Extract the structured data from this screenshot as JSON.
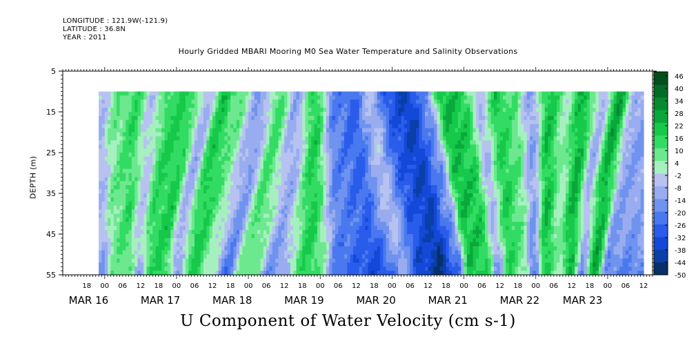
{
  "header": {
    "longitude": "LONGITUDE : 121.9W(-121.9)",
    "latitude": "LATITUDE : 36.8N",
    "year": "YEAR : 2011",
    "title": "Hourly Gridded MBARI Mooring M0 Sea Water Temperature and Salinity Observations"
  },
  "footer": {
    "variable_title": "U Component of Water Velocity (cm s-1)"
  },
  "chart_data": {
    "type": "heatmap",
    "title": "Hourly Gridded MBARI Mooring M0 Sea Water Temperature and Salinity Observations",
    "xlabel": "",
    "ylabel": "DEPTH (m)",
    "colorbar_label": "U Component of Water Velocity (cm s-1)",
    "x_axis": {
      "unit": "hours since 2011-03-16 00:00",
      "range_hours": [
        -14,
        183
      ],
      "data_range_hours": [
        -2,
        180
      ],
      "hour_tick_step": 6,
      "hour_ticks": [
        -6,
        0,
        6,
        12,
        18,
        24,
        30,
        36,
        42,
        48,
        54,
        60,
        66,
        72,
        78,
        84,
        90,
        96,
        102,
        108,
        114,
        120,
        126,
        132,
        138,
        144,
        150,
        156,
        162,
        168,
        174,
        180
      ],
      "hour_labels": [
        "18",
        "00",
        "06",
        "12",
        "18",
        "00",
        "06",
        "12",
        "18",
        "00",
        "06",
        "12",
        "18",
        "00",
        "06",
        "12",
        "18",
        "00",
        "06",
        "12",
        "18",
        "00",
        "06",
        "12",
        "18",
        "00",
        "06",
        "12",
        "18",
        "00",
        "06",
        "12"
      ],
      "date_labels": [
        {
          "text": "MAR 16",
          "hour": -12
        },
        {
          "text": "MAR 17",
          "hour": 12
        },
        {
          "text": "MAR 18",
          "hour": 36
        },
        {
          "text": "MAR 19",
          "hour": 60
        },
        {
          "text": "MAR 20",
          "hour": 84
        },
        {
          "text": "MAR 21",
          "hour": 108
        },
        {
          "text": "MAR 22",
          "hour": 132
        },
        {
          "text": "MAR 23",
          "hour": 153
        }
      ]
    },
    "y_axis": {
      "range": [
        5,
        55
      ],
      "inverted": true,
      "data_range": [
        10,
        55
      ],
      "ticks": [
        5,
        15,
        25,
        35,
        45,
        55
      ]
    },
    "colorbar": {
      "min": -50,
      "max": 48,
      "labels": [
        46,
        40,
        34,
        28,
        22,
        16,
        10,
        4,
        -2,
        -8,
        -14,
        -20,
        -26,
        -32,
        -38,
        -44,
        -50
      ],
      "colors": [
        "#08306b",
        "#0a3fa8",
        "#1448d8",
        "#2a5cec",
        "#4a78ee",
        "#6f93ef",
        "#98acef",
        "#b7c2f1",
        "#a6f0c0",
        "#6de88f",
        "#32dc62",
        "#16c94a",
        "#0aa83a",
        "#058a2f",
        "#036b26",
        "#024f1b"
      ]
    },
    "pattern": {
      "description_rows": "depth",
      "time_profile_hours": [
        -2,
        4,
        10,
        16,
        22,
        28,
        34,
        40,
        46,
        52,
        58,
        64,
        70,
        76,
        82,
        88,
        94,
        100,
        106,
        112,
        118,
        124,
        130,
        136,
        142,
        148,
        154,
        160,
        166,
        172,
        178
      ],
      "time_profile_values": [
        -6,
        8,
        14,
        -4,
        16,
        18,
        -8,
        20,
        6,
        -14,
        12,
        -10,
        18,
        -20,
        -26,
        -6,
        -30,
        -38,
        -18,
        22,
        20,
        -6,
        18,
        10,
        -12,
        22,
        4,
        24,
        -8,
        26,
        -12
      ]
    }
  }
}
